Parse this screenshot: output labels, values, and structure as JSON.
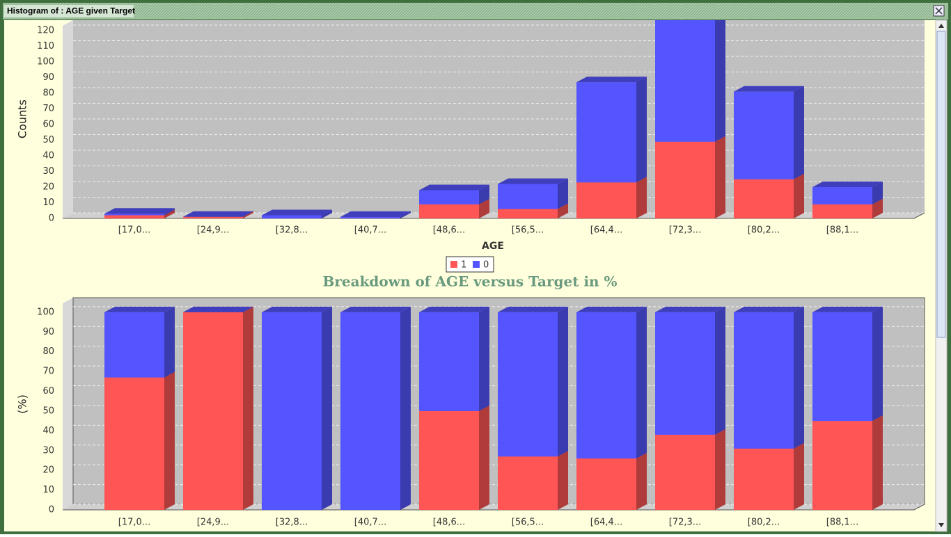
{
  "window_title": "Histogram of : AGE given Target",
  "chart_data": [
    {
      "type": "bar",
      "stacked": true,
      "ylabel": "Counts",
      "xlabel": "AGE",
      "categories": [
        "[17,0...",
        "[24,9...",
        "[32,8...",
        "[40,7...",
        "[48,6...",
        "[56,5...",
        "[64,4...",
        "[72,3...",
        "[80,2...",
        "[88,1..."
      ],
      "series": [
        {
          "name": "1",
          "color": "#ff5555",
          "values": [
            2,
            1,
            0,
            0,
            9,
            6,
            23,
            49,
            25,
            9
          ]
        },
        {
          "name": "0",
          "color": "#5555ff",
          "values": [
            1,
            0,
            2,
            1,
            9,
            16,
            64,
            80,
            56,
            11
          ]
        }
      ],
      "ylim": [
        0,
        127
      ],
      "yticks": [
        0,
        10,
        20,
        30,
        40,
        50,
        60,
        70,
        80,
        90,
        100,
        110,
        120
      ],
      "grid": true
    },
    {
      "type": "bar",
      "stacked": true,
      "title": "Breakdown of AGE versus Target in %",
      "ylabel": "(%)",
      "categories": [
        "[17,0...",
        "[24,9...",
        "[32,8...",
        "[40,7...",
        "[48,6...",
        "[56,5...",
        "[64,4...",
        "[72,3...",
        "[80,2...",
        "[88,1..."
      ],
      "series": [
        {
          "color": "#ff5555",
          "values": [
            67,
            100,
            0,
            0,
            50,
            27,
            26,
            38,
            31,
            45
          ]
        },
        {
          "color": "#5555ff",
          "values": [
            33,
            0,
            100,
            100,
            50,
            73,
            74,
            62,
            69,
            55
          ]
        }
      ],
      "ylim": [
        0,
        107
      ],
      "yticks": [
        0,
        10,
        20,
        30,
        40,
        50,
        60,
        70,
        80,
        90,
        100
      ],
      "grid": true
    }
  ]
}
